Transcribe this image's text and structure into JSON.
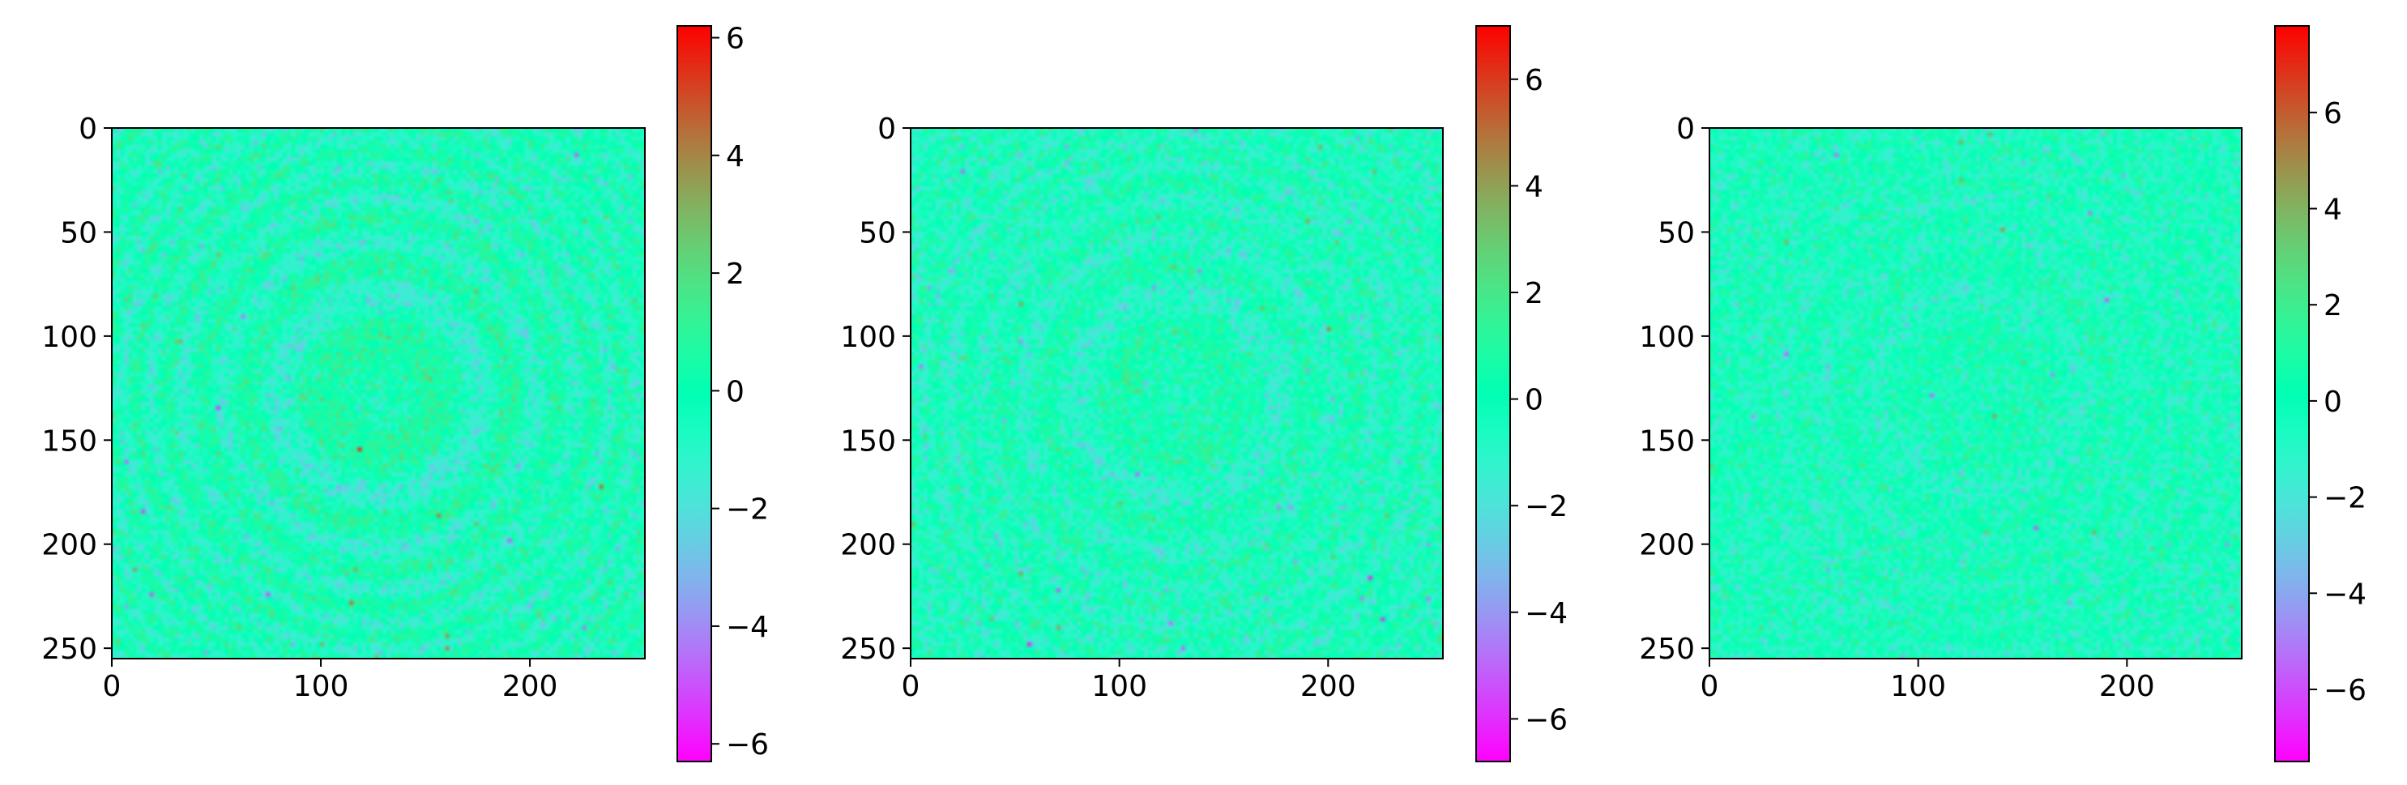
{
  "chart_data": [
    {
      "type": "heatmap",
      "title": "",
      "xlabel": "",
      "ylabel": "",
      "xlim": [
        0,
        255
      ],
      "ylim": [
        255,
        0
      ],
      "xticks": [
        0,
        100,
        200
      ],
      "yticks": [
        0,
        50,
        100,
        150,
        200,
        250
      ],
      "xtick_labels": [
        "0",
        "100",
        "200"
      ],
      "ytick_labels": [
        "0",
        "50",
        "100",
        "150",
        "200",
        "250"
      ],
      "colormap": "rainbow",
      "color_range": [
        -6.3,
        6.2
      ],
      "colorbar_ticks": [
        -6,
        -4,
        -2,
        0,
        2,
        4,
        6
      ],
      "colorbar_labels": [
        "−6",
        "−4",
        "−2",
        "0",
        "2",
        "4",
        "6"
      ],
      "pattern": "concentric ring interference pattern centered near (128, 128), noise-like values concentrated between -3 and 3"
    },
    {
      "type": "heatmap",
      "title": "",
      "xlabel": "",
      "ylabel": "",
      "xlim": [
        0,
        255
      ],
      "ylim": [
        255,
        0
      ],
      "xticks": [
        0,
        100,
        200
      ],
      "yticks": [
        0,
        50,
        100,
        150,
        200,
        250
      ],
      "xtick_labels": [
        "0",
        "100",
        "200"
      ],
      "ytick_labels": [
        "0",
        "50",
        "100",
        "150",
        "200",
        "250"
      ],
      "colormap": "rainbow",
      "color_range": [
        -6.8,
        7.0
      ],
      "colorbar_ticks": [
        -6,
        -4,
        -2,
        0,
        2,
        4,
        6
      ],
      "colorbar_labels": [
        "−6",
        "−4",
        "−2",
        "0",
        "2",
        "4",
        "6"
      ],
      "pattern": "concentric ring interference pattern centered near (128, 128), noise-like values concentrated between -3 and 3"
    },
    {
      "type": "heatmap",
      "title": "",
      "xlabel": "",
      "ylabel": "",
      "xlim": [
        0,
        255
      ],
      "ylim": [
        255,
        0
      ],
      "xticks": [
        0,
        100,
        200
      ],
      "yticks": [
        0,
        50,
        100,
        150,
        200,
        250
      ],
      "xtick_labels": [
        "0",
        "100",
        "200"
      ],
      "ytick_labels": [
        "0",
        "50",
        "100",
        "150",
        "200",
        "250"
      ],
      "colormap": "rainbow",
      "color_range": [
        -7.5,
        7.8
      ],
      "colorbar_ticks": [
        -6,
        -4,
        -2,
        0,
        2,
        4,
        6
      ],
      "colorbar_labels": [
        "−6",
        "−4",
        "−2",
        "0",
        "2",
        "4",
        "6"
      ],
      "pattern": "faint concentric ring pattern centered near (128, 128), noise-like values concentrated between -3 and 2"
    }
  ]
}
